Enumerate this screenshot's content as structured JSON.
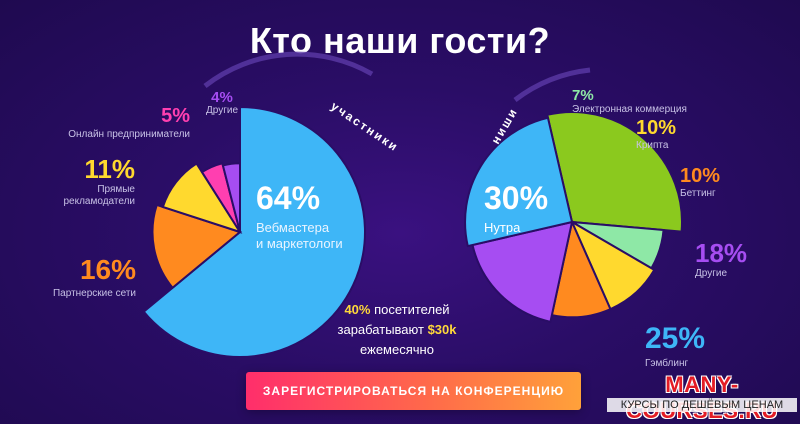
{
  "title": "Кто наши гости?",
  "chart_data": [
    {
      "type": "pie",
      "title": "участники",
      "slices": [
        {
          "label": "Вебмастера и маркетологи",
          "value": 64,
          "value_label": "64%",
          "color": "#3eb6f7"
        },
        {
          "label": "Партнерские сети",
          "value": 16,
          "value_label": "16%",
          "color": "#ff8a1f"
        },
        {
          "label": "Прямые рекламодатели",
          "value": 11,
          "value_label": "11%",
          "color": "#ffd92e"
        },
        {
          "label": "Онлайн предприниматели",
          "value": 5,
          "value_label": "5%",
          "color": "#ff3fb0"
        },
        {
          "label": "Другие",
          "value": 4,
          "value_label": "4%",
          "color": "#a64df2"
        }
      ]
    },
    {
      "type": "pie",
      "title": "ниши",
      "slices": [
        {
          "label": "Нутра",
          "value": 30,
          "value_label": "30%",
          "color": "#8bc91e"
        },
        {
          "label": "Электронная коммерция",
          "value": 7,
          "value_label": "7%",
          "color": "#8ee8a6"
        },
        {
          "label": "Крипта",
          "value": 10,
          "value_label": "10%",
          "color": "#ffd92e"
        },
        {
          "label": "Беттинг",
          "value": 10,
          "value_label": "10%",
          "color": "#ff8a1f"
        },
        {
          "label": "Другие",
          "value": 18,
          "value_label": "18%",
          "color": "#a64df2"
        },
        {
          "label": "Гэмблинг",
          "value": 25,
          "value_label": "25%",
          "color": "#3eb6f7"
        }
      ]
    }
  ],
  "labels": {
    "left": {
      "big_pct": "64%",
      "big_line1": "Вебмастера",
      "big_line2": "и маркетологи",
      "partners_pct": "16%",
      "partners": "Партнерские сети",
      "direct_pct": "11%",
      "direct_line1": "Прямые",
      "direct_line2": "рекламодатели",
      "online_pct": "5%",
      "online": "Онлайн предприниматели",
      "other_pct": "4%",
      "other": "Другие"
    },
    "right": {
      "big_pct": "30%",
      "big": "Нутра",
      "ecom_pct": "7%",
      "ecom": "Электронная коммерция",
      "crypto_pct": "10%",
      "crypto": "Крипта",
      "betting_pct": "10%",
      "betting": "Беттинг",
      "other_pct": "18%",
      "other": "Другие",
      "gambling_pct": "25%",
      "gambling": "Гэмблинг"
    }
  },
  "note": {
    "pct": "40%",
    "part1": "посетителей",
    "part2": "зарабатывают",
    "amount": "$30k",
    "part3": "ежемесячно"
  },
  "cta": "ЗАРЕГИСТРИРОВАТЬСЯ НА КОНФЕРЕНЦИЮ",
  "watermark": {
    "title": "MANY-COURSES.RU",
    "subtitle": "КУРСЫ ПО ДЕШЁВЫМ ЦЕНАМ"
  }
}
